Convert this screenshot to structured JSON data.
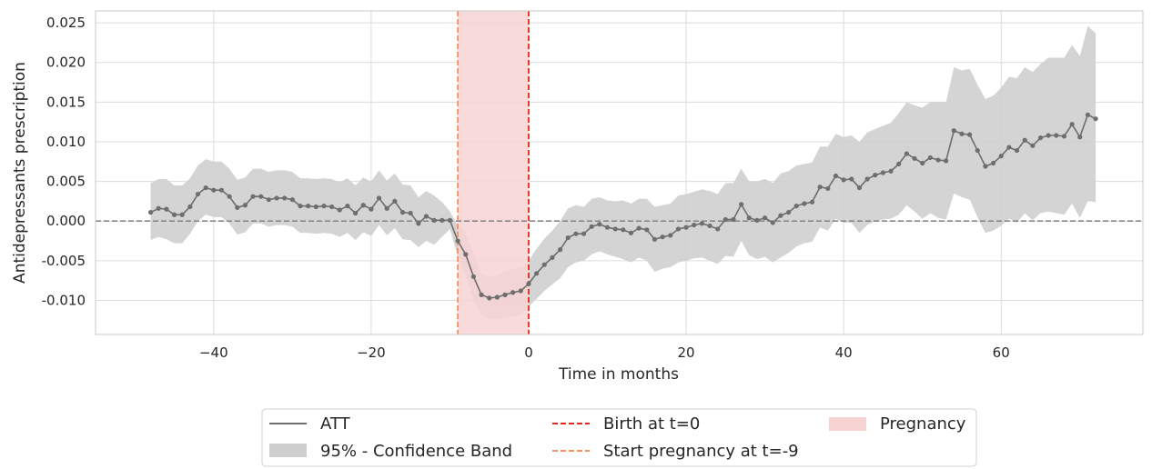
{
  "chart_data": {
    "type": "line",
    "title": "",
    "xlabel": "Time in months",
    "ylabel": "Antidepressants prescription",
    "xlim": [
      -55,
      78
    ],
    "ylim": [
      -0.0143,
      0.0265
    ],
    "xticks": [
      -40,
      -20,
      0,
      20,
      40,
      60
    ],
    "xtick_labels": [
      "−40",
      "−20",
      "0",
      "20",
      "40",
      "60"
    ],
    "yticks": [
      -0.01,
      -0.005,
      0.0,
      0.005,
      0.01,
      0.015,
      0.02,
      0.025
    ],
    "ytick_labels": [
      "-0.010",
      "-0.005",
      "0.000",
      "0.005",
      "0.010",
      "0.015",
      "0.020",
      "0.025"
    ],
    "grid": true,
    "reference_line": {
      "y": 0.0,
      "color": "#888888",
      "style": "dashed"
    },
    "vlines": [
      {
        "x": 0,
        "label": "Birth at t=0",
        "color": "#e8261c"
      },
      {
        "x": -9,
        "label": "Start pregnancy at t=-9",
        "color": "#f4925f"
      }
    ],
    "shaded_region": {
      "x": [
        -9,
        0
      ],
      "label": "Pregnancy",
      "color": "#f8d3d3"
    },
    "colors": {
      "att": "#6e6e6e",
      "band": "#cfcfcf",
      "grid": "#dcdcdc",
      "axes": "#c9c9c9"
    },
    "series": [
      {
        "name": "ATT",
        "x": [
          -48,
          -47,
          -46,
          -45,
          -44,
          -43,
          -42,
          -41,
          -40,
          -39,
          -38,
          -37,
          -36,
          -35,
          -34,
          -33,
          -32,
          -31,
          -30,
          -29,
          -28,
          -27,
          -26,
          -25,
          -24,
          -23,
          -22,
          -21,
          -20,
          -19,
          -18,
          -17,
          -16,
          -15,
          -14,
          -13,
          -12,
          -11,
          -10,
          -9,
          -8,
          -7,
          -6,
          -5,
          -4,
          -3,
          -2,
          -1,
          0,
          1,
          2,
          3,
          4,
          5,
          6,
          7,
          8,
          9,
          10,
          11,
          12,
          13,
          14,
          15,
          16,
          17,
          18,
          19,
          20,
          21,
          22,
          23,
          24,
          25,
          26,
          27,
          28,
          29,
          30,
          31,
          32,
          33,
          34,
          35,
          36,
          37,
          38,
          39,
          40,
          41,
          42,
          43,
          44,
          45,
          46,
          47,
          48,
          49,
          50,
          51,
          52,
          53,
          54,
          55,
          56,
          57,
          58,
          59,
          60,
          61,
          62,
          63,
          64,
          65,
          66,
          67,
          68,
          69,
          70,
          71,
          72
        ],
        "values": [
          0.0011,
          0.0016,
          0.0015,
          0.0008,
          0.0008,
          0.0018,
          0.0034,
          0.0042,
          0.0039,
          0.0039,
          0.0031,
          0.0017,
          0.002,
          0.0031,
          0.0031,
          0.0027,
          0.0029,
          0.0029,
          0.0027,
          0.0019,
          0.0019,
          0.0018,
          0.0019,
          0.0018,
          0.0014,
          0.0019,
          0.001,
          0.002,
          0.0015,
          0.0029,
          0.0016,
          0.0025,
          0.0011,
          0.001,
          -0.0003,
          0.0006,
          0.0001,
          0.0001,
          0.0001,
          -0.0025,
          -0.0042,
          -0.007,
          -0.0093,
          -0.0097,
          -0.0096,
          -0.0093,
          -0.009,
          -0.0088,
          -0.0079,
          -0.0066,
          -0.0055,
          -0.0046,
          -0.0036,
          -0.0021,
          -0.0016,
          -0.0016,
          -0.0007,
          -0.0004,
          -0.0008,
          -0.001,
          -0.0011,
          -0.0015,
          -0.0009,
          -0.0011,
          -0.0023,
          -0.002,
          -0.0018,
          -0.001,
          -0.0008,
          -0.0005,
          -0.0003,
          -0.0006,
          -0.001,
          0.0002,
          0.0002,
          0.0021,
          0.0004,
          0.0001,
          0.0004,
          -0.0002,
          0.0007,
          0.0011,
          0.0019,
          0.0022,
          0.0024,
          0.0043,
          0.0041,
          0.0057,
          0.0052,
          0.0053,
          0.0042,
          0.0053,
          0.0058,
          0.0061,
          0.0063,
          0.0072,
          0.0085,
          0.0079,
          0.0073,
          0.008,
          0.0077,
          0.0076,
          0.0114,
          0.011,
          0.0109,
          0.0089,
          0.0069,
          0.0073,
          0.0082,
          0.0093,
          0.0089,
          0.0102,
          0.0095,
          0.0105,
          0.0108,
          0.0108,
          0.0107,
          0.0122,
          0.0106,
          0.0134,
          0.0129
        ]
      },
      {
        "name": "95% - Confidence Band",
        "lower": [
          -0.0024,
          -0.002,
          -0.0023,
          -0.0028,
          -0.0028,
          -0.0016,
          0.0,
          0.0008,
          0.0005,
          0.0005,
          -0.0003,
          -0.0017,
          -0.0014,
          -0.0003,
          -0.0003,
          -0.0007,
          -0.0005,
          -0.0005,
          -0.0007,
          -0.0015,
          -0.0015,
          -0.0016,
          -0.0015,
          -0.0016,
          -0.002,
          -0.0015,
          -0.0024,
          -0.0014,
          -0.0019,
          -0.0005,
          -0.0018,
          -0.0009,
          -0.0023,
          -0.0024,
          -0.0033,
          -0.0025,
          -0.003,
          -0.002,
          -0.001,
          -0.0045,
          -0.007,
          -0.01,
          -0.0118,
          -0.0124,
          -0.0124,
          -0.0122,
          -0.012,
          -0.0118,
          -0.0108,
          -0.0098,
          -0.0088,
          -0.008,
          -0.0072,
          -0.0058,
          -0.0052,
          -0.005,
          -0.0042,
          -0.0038,
          -0.0042,
          -0.0045,
          -0.0048,
          -0.0052,
          -0.0046,
          -0.005,
          -0.0064,
          -0.006,
          -0.0058,
          -0.0052,
          -0.005,
          -0.0047,
          -0.0046,
          -0.005,
          -0.0054,
          -0.0044,
          -0.0045,
          -0.0025,
          -0.0043,
          -0.0048,
          -0.0045,
          -0.0052,
          -0.0046,
          -0.004,
          -0.0032,
          -0.0028,
          -0.0026,
          -0.0008,
          -0.0012,
          0.0003,
          -0.0002,
          -0.0002,
          -0.0015,
          -0.0005,
          0.0,
          0.0002,
          0.0003,
          0.0008,
          0.002,
          0.0012,
          0.0003,
          0.001,
          0.0004,
          0.0002,
          0.0035,
          0.003,
          0.0027,
          0.0005,
          -0.0015,
          -0.0012,
          -0.0006,
          0.0003,
          -0.0002,
          0.001,
          0.0001,
          0.001,
          0.0012,
          0.001,
          0.0008,
          0.0022,
          0.0004,
          0.0025,
          0.0024
        ],
        "upper": [
          0.0048,
          0.0053,
          0.0053,
          0.0045,
          0.0045,
          0.0054,
          0.007,
          0.0078,
          0.0075,
          0.0075,
          0.0066,
          0.0052,
          0.0055,
          0.0066,
          0.0066,
          0.0062,
          0.0064,
          0.0064,
          0.0062,
          0.0054,
          0.0054,
          0.0053,
          0.0054,
          0.0053,
          0.0049,
          0.0054,
          0.0045,
          0.0055,
          0.005,
          0.0064,
          0.0051,
          0.006,
          0.0046,
          0.0045,
          0.003,
          0.0038,
          0.0032,
          0.0024,
          0.0012,
          -0.0005,
          -0.0015,
          -0.004,
          -0.0068,
          -0.007,
          -0.0068,
          -0.0064,
          -0.006,
          -0.0058,
          -0.005,
          -0.0035,
          -0.0022,
          -0.0012,
          0.0,
          0.0016,
          0.002,
          0.0018,
          0.0028,
          0.003,
          0.0026,
          0.0025,
          0.0026,
          0.0022,
          0.0028,
          0.0028,
          0.0018,
          0.002,
          0.0022,
          0.0032,
          0.0034,
          0.0037,
          0.004,
          0.0038,
          0.0034,
          0.0048,
          0.0048,
          0.0066,
          0.005,
          0.005,
          0.0053,
          0.0048,
          0.006,
          0.0063,
          0.007,
          0.0072,
          0.0074,
          0.0094,
          0.0094,
          0.011,
          0.0106,
          0.0108,
          0.01,
          0.0112,
          0.0116,
          0.012,
          0.0124,
          0.0136,
          0.015,
          0.0146,
          0.0143,
          0.015,
          0.015,
          0.015,
          0.0194,
          0.019,
          0.0192,
          0.0172,
          0.0154,
          0.0158,
          0.0168,
          0.0182,
          0.018,
          0.0194,
          0.0188,
          0.0198,
          0.0206,
          0.0206,
          0.0206,
          0.0222,
          0.0208,
          0.0246,
          0.0237
        ]
      }
    ],
    "legend": {
      "position": "bottom-center",
      "entries": [
        {
          "label": "ATT",
          "kind": "line",
          "color": "#6e6e6e"
        },
        {
          "label": "95% - Confidence Band",
          "kind": "patch",
          "color": "#cfcfcf"
        },
        {
          "label": "Birth at t=0",
          "kind": "dashed",
          "color": "#e8261c"
        },
        {
          "label": "Start pregnancy at t=-9",
          "kind": "dashed",
          "color": "#f4925f"
        },
        {
          "label": "Pregnancy",
          "kind": "patch",
          "color": "#f8d3d3"
        }
      ]
    }
  }
}
